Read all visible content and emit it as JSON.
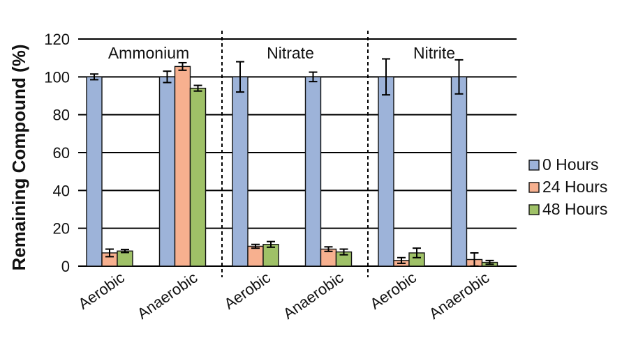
{
  "chart_data": {
    "type": "bar",
    "title": "",
    "xlabel": "",
    "ylabel": "Remaining Compound (%)",
    "ylim": [
      0,
      120
    ],
    "yticks": [
      "0",
      "20",
      "40",
      "60",
      "80",
      "100",
      "120"
    ],
    "grid": true,
    "legend_position": "right",
    "groups": [
      {
        "label": "Ammonium",
        "categories": [
          "Aerobic",
          "Anaerobic"
        ]
      },
      {
        "label": "Nitrate",
        "categories": [
          "Aerobic",
          "Anaerobic"
        ]
      },
      {
        "label": "Nitrite",
        "categories": [
          "Aerobic",
          "Anaerobic"
        ]
      }
    ],
    "categories": [
      "Aerobic",
      "Anaerobic",
      "Aerobic",
      "Anaerobic",
      "Aerobic",
      "Anaerobic"
    ],
    "series": [
      {
        "name": "0 Hours",
        "color": "#9db3d9",
        "values": [
          100,
          100,
          100,
          100,
          100,
          100
        ],
        "errors": [
          1.5,
          3,
          8,
          2.5,
          9.5,
          9
        ]
      },
      {
        "name": "24 Hours",
        "color": "#f7b08f",
        "values": [
          7,
          105.5,
          10.5,
          9,
          3,
          3.5
        ],
        "errors": [
          2,
          2,
          1,
          1.2,
          1.5,
          3.5
        ]
      },
      {
        "name": "48 Hours",
        "color": "#9fc167",
        "values": [
          8,
          94,
          11.5,
          7.5,
          7,
          2
        ],
        "errors": [
          0.8,
          1.5,
          1.5,
          1.5,
          2.5,
          1
        ]
      }
    ]
  }
}
